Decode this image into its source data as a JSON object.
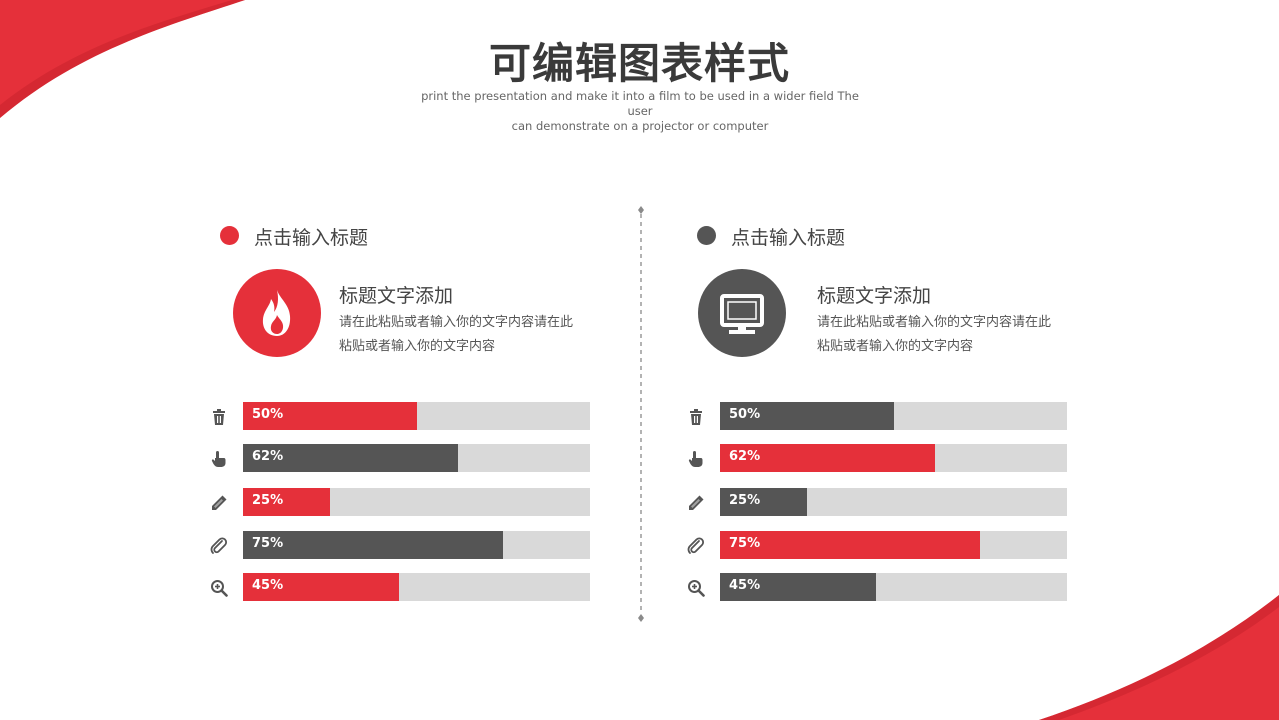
{
  "colors": {
    "red": "#e5303a",
    "dark": "#555555",
    "track": "#d9d9d9"
  },
  "header": {
    "title": "可编辑图表样式",
    "subtitle_line1": "print the presentation and make it into a film to be used in a wider field The user",
    "subtitle_line2": "can demonstrate on a projector or computer"
  },
  "left": {
    "heading": "点击输入标题",
    "feature_icon": "flame-icon",
    "feature_title": "标题文字添加",
    "desc_line1": "请在此粘贴或者输入你的文字内容请在此",
    "desc_line2": "粘贴或者输入你的文字内容"
  },
  "right": {
    "heading": "点击输入标题",
    "feature_icon": "monitor-icon",
    "feature_title": "标题文字添加",
    "desc_line1": "请在此粘贴或者输入你的文字内容请在此",
    "desc_line2": "粘贴或者输入你的文字内容"
  },
  "chart_data": [
    {
      "type": "bar",
      "orientation": "horizontal",
      "categories": [
        "trash-icon",
        "hand-pointer-icon",
        "pencil-icon",
        "paperclip-icon",
        "zoom-in-icon"
      ],
      "values": [
        50,
        62,
        25,
        75,
        45
      ],
      "labels": [
        "50%",
        "62%",
        "25%",
        "75%",
        "45%"
      ],
      "colors": [
        "#e5303a",
        "#555555",
        "#e5303a",
        "#555555",
        "#e5303a"
      ],
      "xlim": [
        0,
        100
      ]
    },
    {
      "type": "bar",
      "orientation": "horizontal",
      "categories": [
        "trash-icon",
        "hand-pointer-icon",
        "pencil-icon",
        "paperclip-icon",
        "zoom-in-icon"
      ],
      "values": [
        50,
        62,
        25,
        75,
        45
      ],
      "labels": [
        "50%",
        "62%",
        "25%",
        "75%",
        "45%"
      ],
      "colors": [
        "#555555",
        "#e5303a",
        "#555555",
        "#e5303a",
        "#555555"
      ],
      "xlim": [
        0,
        100
      ]
    }
  ]
}
